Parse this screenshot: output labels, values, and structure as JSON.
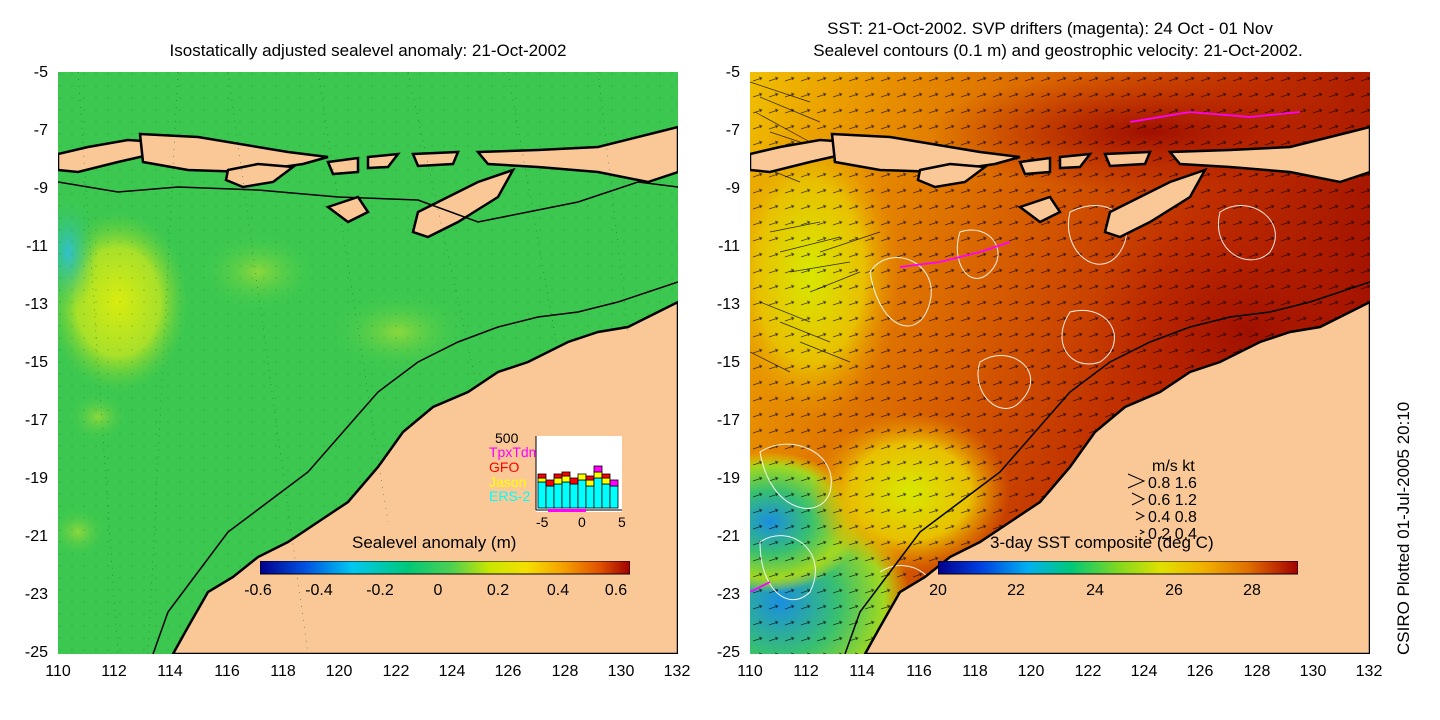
{
  "left_panel": {
    "title": "Isostatically adjusted sealevel anomaly: 21-Oct-2002",
    "colorbar": {
      "label": "Sealevel anomaly (m)",
      "ticks": [
        "-0.6",
        "-0.4",
        "-0.2",
        "0",
        "0.2",
        "0.4",
        "0.6"
      ],
      "colors": [
        "#00008b",
        "#0050e0",
        "#00c8f0",
        "#00c878",
        "#50d050",
        "#c8e600",
        "#f5e000",
        "#f5a000",
        "#e05000",
        "#a00000"
      ]
    },
    "inset": {
      "ymax_label": "500",
      "xticks": [
        "-5",
        "0",
        "5"
      ],
      "legend": [
        {
          "name": "TpxTdm",
          "color": "#ff00ff"
        },
        {
          "name": "GFO",
          "color": "#ff0000"
        },
        {
          "name": "Jason",
          "color": "#ffff00"
        },
        {
          "name": "ERS-2",
          "color": "#00ffff"
        }
      ]
    }
  },
  "right_panel": {
    "title_line1": "SST: 21-Oct-2002. SVP drifters (magenta): 24 Oct - 01 Nov",
    "title_line2": "Sealevel contours (0.1 m) and geostrophic velocity: 21-Oct-2002.",
    "colorbar": {
      "label": "3-day SST composite (deg C)",
      "ticks": [
        "20",
        "22",
        "24",
        "26",
        "28"
      ],
      "colors": [
        "#00008b",
        "#0040e0",
        "#00b0f0",
        "#00c878",
        "#80d820",
        "#e0e000",
        "#f0b000",
        "#e07000",
        "#c03000",
        "#a00000"
      ]
    },
    "velocity_legend": {
      "header": "m/s  kt",
      "rows": [
        "0.8  1.6",
        "0.6  1.2",
        "0.4  0.8",
        "0.2  0.4"
      ]
    }
  },
  "axes": {
    "yticks": [
      "-5",
      "-7",
      "-9",
      "-11",
      "-13",
      "-15",
      "-17",
      "-19",
      "-21",
      "-23",
      "-25"
    ],
    "xticks": [
      "110",
      "112",
      "114",
      "116",
      "118",
      "120",
      "122",
      "124",
      "126",
      "128",
      "130",
      "132"
    ]
  },
  "colors": {
    "land": "#fac896",
    "ocean_left": "#3cc850",
    "ocean_left_light": "#8ee03c",
    "ocean_right_warm": "#c83c00",
    "ocean_right_hot": "#a01400",
    "ocean_right_mid": "#e07800",
    "ocean_right_cool": "#38c070"
  },
  "footer": "CSIRO Plotted 01-Jul-2005 20:10"
}
